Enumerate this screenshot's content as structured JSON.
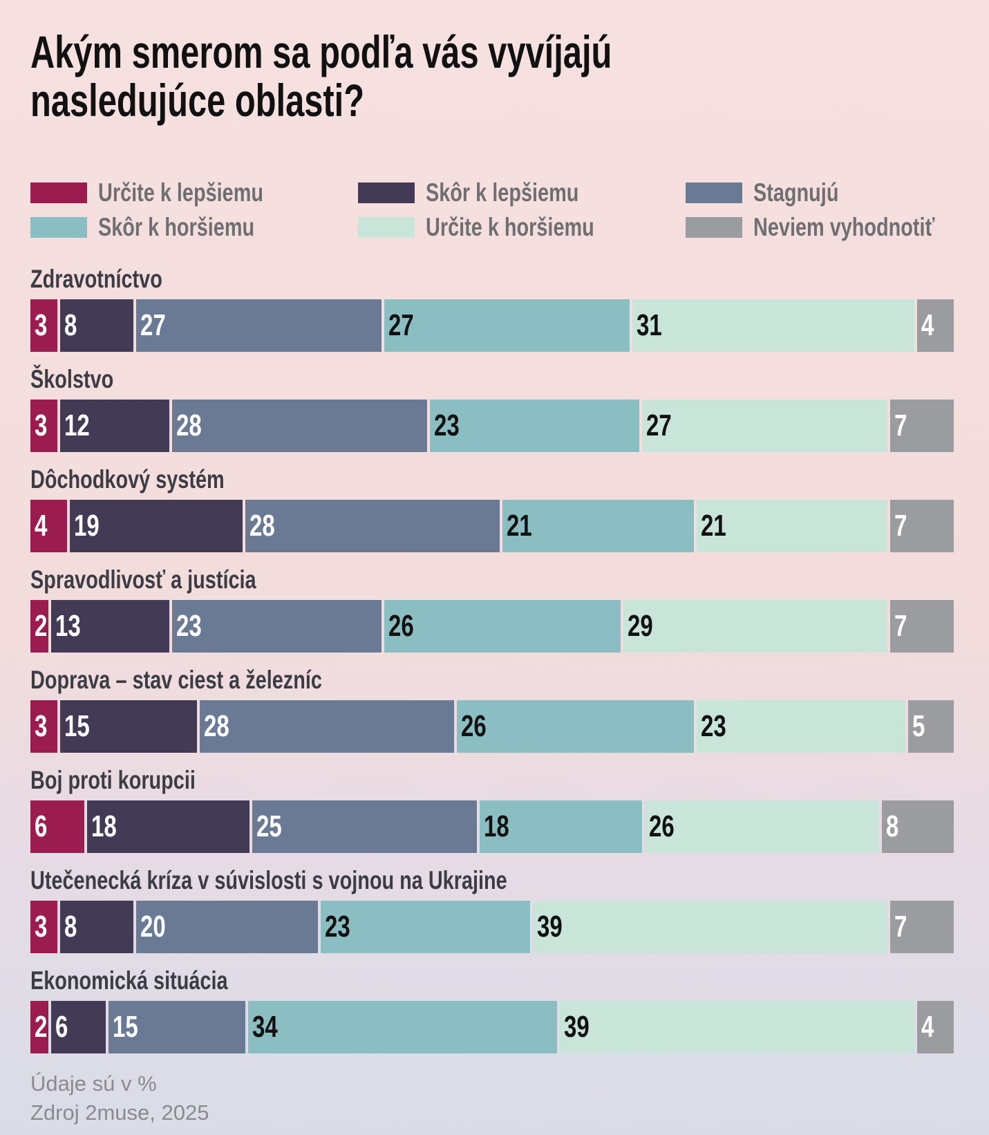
{
  "chart_data": {
    "type": "bar",
    "orientation": "horizontal-stacked-100",
    "title": "Akým smerom sa podľa vás vyvíjajú nasledujúce oblasti?",
    "legend_position": "top",
    "categories": [
      "Zdravotníctvo",
      "Školstvo",
      "Dôchodkový systém",
      "Spravodlivosť a justícia",
      "Doprava – stav ciest a železníc",
      "Boj proti korupcii",
      "Utečenecká kríza v súvislosti s vojnou na Ukrajine",
      "Ekonomická situácia"
    ],
    "series": [
      {
        "name": "Určite k lepšiemu",
        "color": "#9b1d50",
        "text_color": "#ffffff",
        "values": [
          3,
          3,
          4,
          2,
          3,
          6,
          3,
          2
        ]
      },
      {
        "name": "Skôr k lepšiemu",
        "color": "#433b55",
        "text_color": "#ffffff",
        "values": [
          8,
          12,
          19,
          13,
          15,
          18,
          8,
          6
        ]
      },
      {
        "name": "Stagnujú",
        "color": "#6a7a94",
        "text_color": "#ffffff",
        "values": [
          27,
          28,
          28,
          23,
          28,
          25,
          20,
          15
        ]
      },
      {
        "name": "Skôr k horšiemu",
        "color": "#8bbec2",
        "text_color": "#111111",
        "values": [
          27,
          23,
          21,
          26,
          26,
          18,
          23,
          34
        ]
      },
      {
        "name": "Určite k horšiemu",
        "color": "#c9e5da",
        "text_color": "#111111",
        "values": [
          31,
          27,
          21,
          29,
          23,
          26,
          39,
          39
        ]
      },
      {
        "name": "Neviem vyhodnotiť",
        "color": "#9a9c9f",
        "text_color": "#ffffff",
        "values": [
          4,
          7,
          7,
          7,
          5,
          8,
          7,
          4
        ]
      }
    ],
    "unit_note": "Údaje sú v %",
    "source": "Zdroj 2muse, 2025"
  }
}
